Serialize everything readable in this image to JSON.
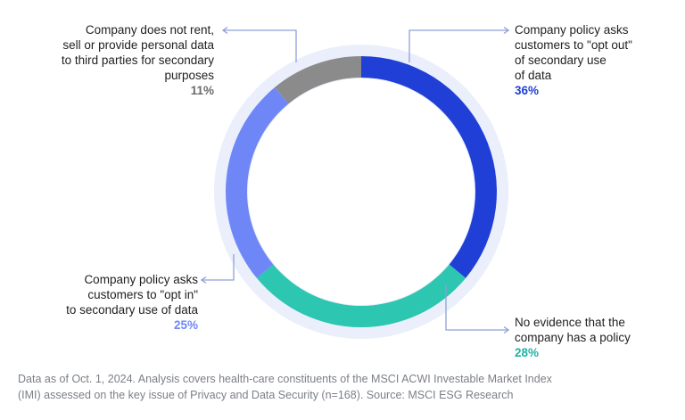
{
  "chart_data": {
    "type": "pie",
    "donut": true,
    "slices": [
      {
        "label_lines": [
          "Company policy asks",
          "customers to \"opt out\"",
          "of secondary use",
          "of data"
        ],
        "value": 36,
        "value_label": "36%",
        "color": "#1f3fd6"
      },
      {
        "label_lines": [
          "No evidence that the",
          "company has a policy"
        ],
        "value": 28,
        "value_label": "28%",
        "color": "#2cc6b1"
      },
      {
        "label_lines": [
          "Company policy asks",
          "customers to \"opt in\"",
          "to secondary use of data"
        ],
        "value": 25,
        "value_label": "25%",
        "color": "#6f87f6"
      },
      {
        "label_lines": [
          "Company does not rent,",
          "sell or provide personal data",
          "to third parties for secondary",
          "purposes"
        ],
        "value": 11,
        "value_label": "11%",
        "color": "#8b8b8b"
      }
    ],
    "colors": {
      "halo": "#ebeffb",
      "leader": "#8fa0d8",
      "pct_36": "#1f3fd6",
      "pct_28": "#20b49f",
      "pct_25": "#6f87f6",
      "pct_11": "#6b6b6b"
    }
  },
  "footnote": {
    "line1": "Data as of Oct. 1, 2024. Analysis covers health-care constituents of the MSCI ACWI Investable Market Index",
    "line2": "(IMI) assessed on the key issue of Privacy and Data Security (n=168). Source: MSCI ESG Research"
  }
}
